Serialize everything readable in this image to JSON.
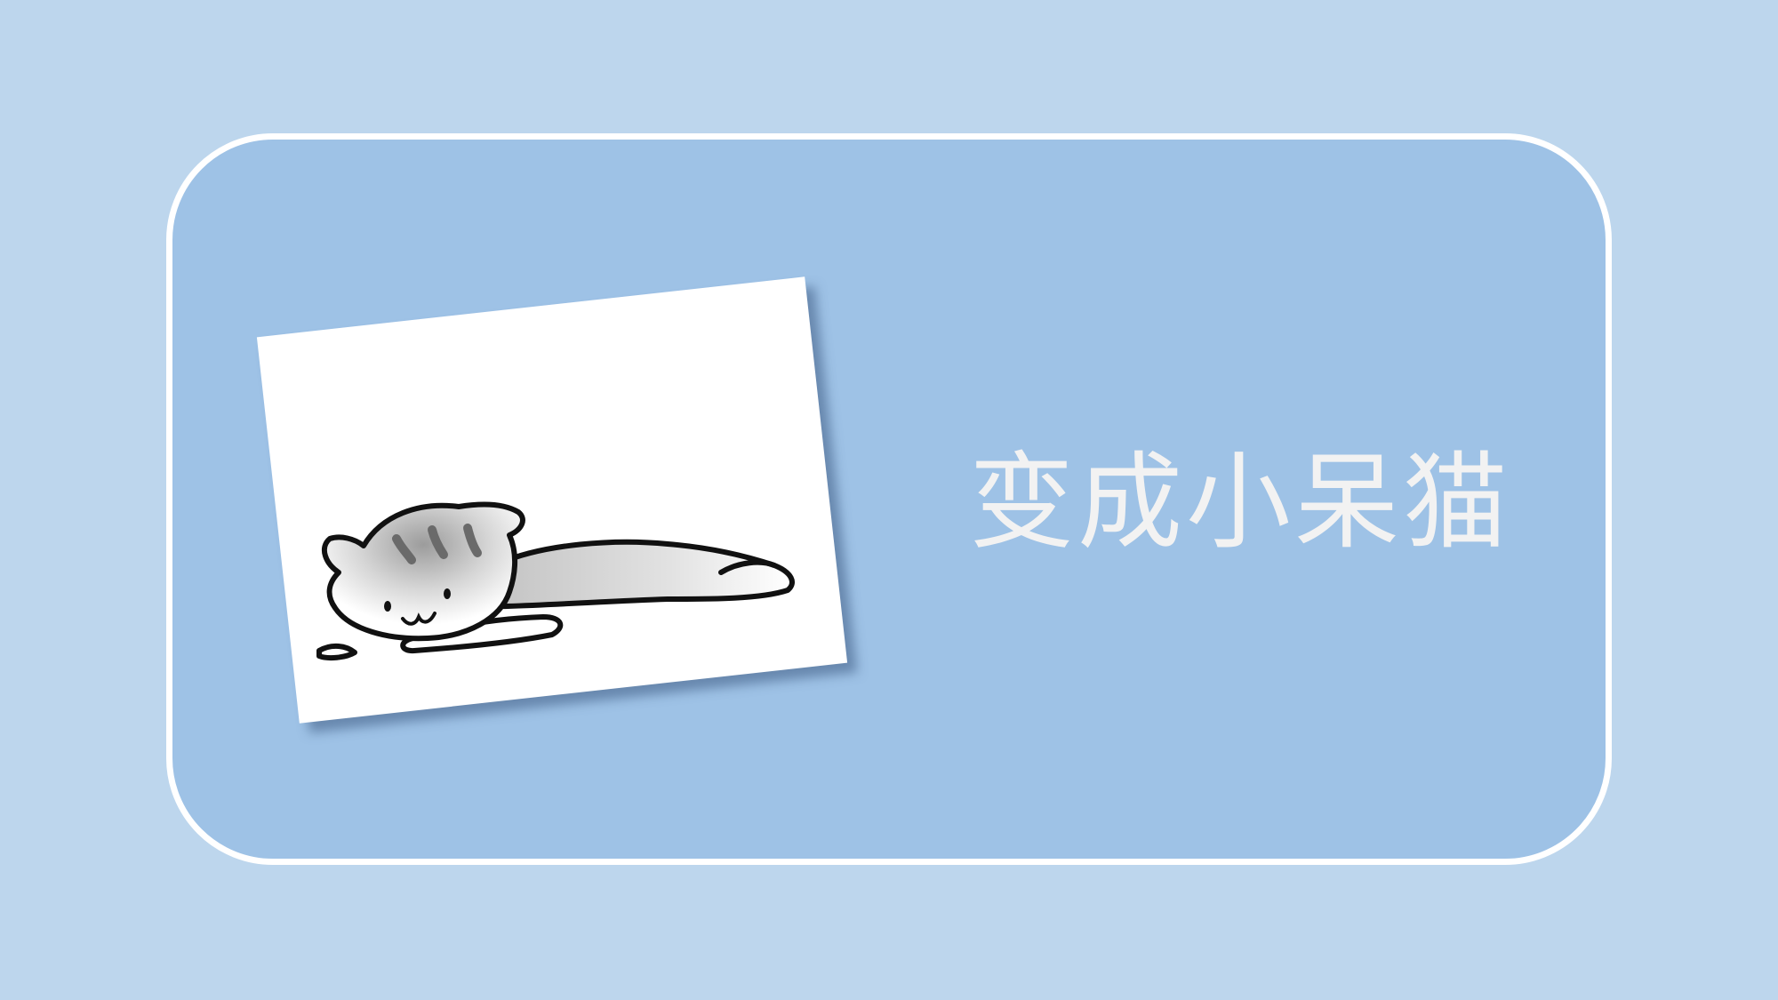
{
  "slide": {
    "title": "变成小呆猫",
    "image": {
      "subject": "lazy-cat-drawing"
    }
  },
  "colors": {
    "background": "#bdd6ed",
    "panel_fill": "#9ec2e6",
    "panel_border": "#ffffff",
    "title_text": "#f2f2f2",
    "card_fill": "#ffffff"
  }
}
